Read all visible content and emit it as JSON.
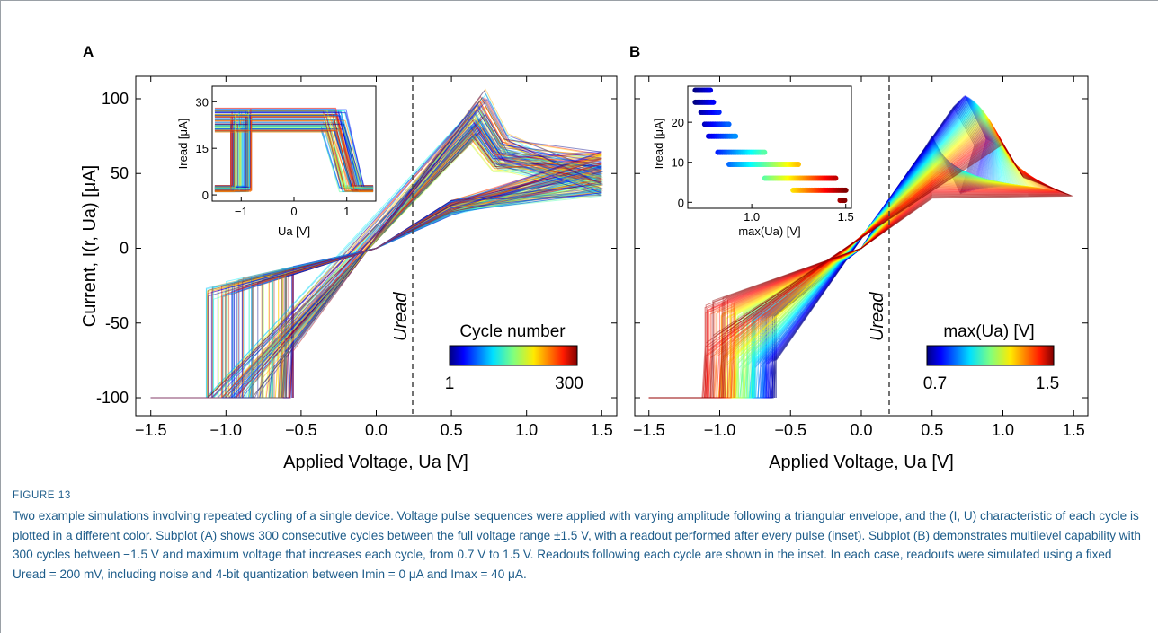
{
  "figure": {
    "number": "FIGURE 13",
    "caption": "Two example simulations involving repeated cycling of a single device. Voltage pulse sequences were applied with varying amplitude following a triangular envelope, and the (I, U) characteristic of each cycle is plotted in a different color. Subplot (A) shows 300 consecutive cycles between the full voltage range ±1.5 V, with a readout performed after every pulse (inset). Subplot (B) demonstrates multilevel capability with 300 cycles between −1.5 V and maximum voltage that increases each cycle, from 0.7 V to 1.5 V. Readouts following each cycle are shown in the inset. In each case, readouts were simulated using a fixed Uread = 200 mV, including noise and 4-bit quantization between Imin = 0 μA and Imax = 40 μA."
  },
  "panels": {
    "A": {
      "label": "A",
      "ylabel": "Current, I(r, Ua) [μA]",
      "xlabel": "Applied Voltage, Ua [V]",
      "uread_label": "Uread",
      "colorbar_title": "Cycle number",
      "colorbar_min": "1",
      "colorbar_max": "300",
      "inset_ylabel": "Iread [μA]",
      "inset_xlabel": "Ua [V]"
    },
    "B": {
      "label": "B",
      "xlabel": "Applied Voltage, Ua [V]",
      "uread_label": "Uread",
      "colorbar_title": "max(Ua) [V]",
      "colorbar_min": "0.7",
      "colorbar_max": "1.5",
      "inset_ylabel": "Iread [μA]",
      "inset_xlabel": "max(Ua) [V]"
    }
  },
  "colors": {
    "caption": "#1d5c8a",
    "colormap": "jet"
  },
  "chart_data": [
    {
      "type": "line",
      "panel": "A",
      "description_series": "300 I–U cycles between ±1.5 V, colored by cycle number",
      "xlabel": "Applied Voltage, Ua [V]",
      "ylabel": "Current, I(r, Ua) [μA]",
      "xlim": [
        -1.6,
        1.6
      ],
      "ylim": [
        -112,
        115
      ],
      "xticks": [
        -1.5,
        -1.0,
        -0.5,
        0.0,
        0.5,
        1.0,
        1.5
      ],
      "xtick_labels": [
        "−1.5",
        "−1.0",
        "−0.5",
        "0.0",
        "0.5",
        "1.0",
        "1.5"
      ],
      "yticks": [
        -100,
        -50,
        0,
        50,
        100
      ],
      "ytick_labels": [
        "-100",
        "-50",
        "0",
        "50",
        "100"
      ],
      "uread_x": 0.2,
      "inset": {
        "type": "line",
        "xlim": [
          -1.55,
          1.55
        ],
        "ylim": [
          -2,
          35
        ],
        "xticks": [
          -1,
          0,
          1
        ],
        "xtick_labels": [
          "−1",
          "0",
          "1"
        ],
        "yticks": [
          0,
          15,
          30
        ],
        "ytick_labels": [
          "0",
          "15",
          "30"
        ]
      }
    },
    {
      "type": "line",
      "panel": "B",
      "xlabel": "Applied Voltage, Ua [V]",
      "ylabel": "",
      "xlim": [
        -1.6,
        1.6
      ],
      "ylim": [
        -112,
        115
      ],
      "xticks": [
        -1.5,
        -1.0,
        -0.5,
        0.0,
        0.5,
        1.0,
        1.5
      ],
      "xtick_labels": [
        "−1.5",
        "−1.0",
        "−0.5",
        "0.0",
        "0.5",
        "1.0",
        "1.5"
      ],
      "yticks": [
        -100,
        -50,
        0,
        50,
        100
      ],
      "uread_x": 0.2,
      "inset": {
        "type": "scatter",
        "xlim": [
          0.66,
          1.53
        ],
        "ylim": [
          -1.5,
          29
        ],
        "xticks": [
          1.0,
          1.5
        ],
        "xtick_labels": [
          "1.0",
          "1.5"
        ],
        "yticks": [
          0,
          10,
          20
        ],
        "ytick_labels": [
          "0",
          "10",
          "20"
        ],
        "levels": [
          {
            "y": 28,
            "x": [
              0.7,
              0.78
            ]
          },
          {
            "y": 25,
            "x": [
              0.7,
              0.8
            ]
          },
          {
            "y": 22.5,
            "x": [
              0.73,
              0.83
            ]
          },
          {
            "y": 19.5,
            "x": [
              0.75,
              0.88
            ]
          },
          {
            "y": 16.5,
            "x": [
              0.77,
              0.92
            ]
          },
          {
            "y": 12.5,
            "x": [
              0.82,
              1.07
            ]
          },
          {
            "y": 9.5,
            "x": [
              0.88,
              1.25
            ]
          },
          {
            "y": 6,
            "x": [
              1.07,
              1.45
            ]
          },
          {
            "y": 3,
            "x": [
              1.22,
              1.5
            ]
          },
          {
            "y": 0.5,
            "x": [
              1.47,
              1.5
            ]
          }
        ]
      }
    }
  ]
}
